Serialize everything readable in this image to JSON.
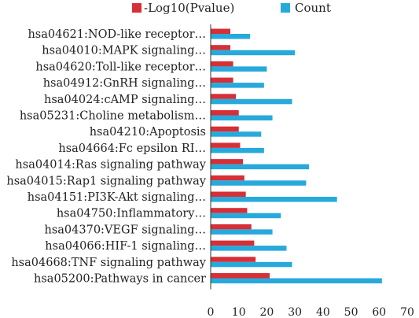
{
  "chart_data": {
    "type": "bar",
    "orientation": "horizontal",
    "categories": [
      "hsa04621:NOD-like receptor…",
      "hsa04010:MAPK signaling…",
      "hsa04620:Toll-like receptor…",
      "hsa04912:GnRH signaling…",
      "hsa04024:cAMP signaling…",
      "hsa05231:Choline metabolism…",
      "hsa04210:Apoptosis",
      "hsa04664:Fc epsilon RI…",
      "hsa04014:Ras signaling pathway",
      "hsa04015:Rap1 signaling pathway",
      "hsa04151:PI3K-Akt signaling…",
      "hsa04750:Inflammatory…",
      "hsa04370:VEGF signaling…",
      "hsa04066:HIF-1 signaling…",
      "hsa04668:TNF signaling pathway",
      "hsa05200:Pathways in cancer"
    ],
    "series": [
      {
        "name": "-Log10(Pvalue)",
        "color": "#d62f36",
        "values": [
          7,
          7,
          8,
          8,
          9,
          10,
          10,
          10.5,
          11.5,
          12,
          12.5,
          13,
          14.5,
          15.5,
          16,
          21
        ]
      },
      {
        "name": "Count",
        "color": "#27a9dc",
        "values": [
          14,
          30,
          20,
          19,
          29,
          22,
          18,
          19,
          35,
          34,
          45,
          25,
          22,
          27,
          29,
          61
        ]
      }
    ],
    "xlim": [
      0,
      70
    ],
    "xticks": [
      0,
      10,
      20,
      30,
      40,
      50,
      60,
      70
    ],
    "title": "",
    "xlabel": "",
    "ylabel": "",
    "grid": false,
    "legend_position": "top"
  }
}
